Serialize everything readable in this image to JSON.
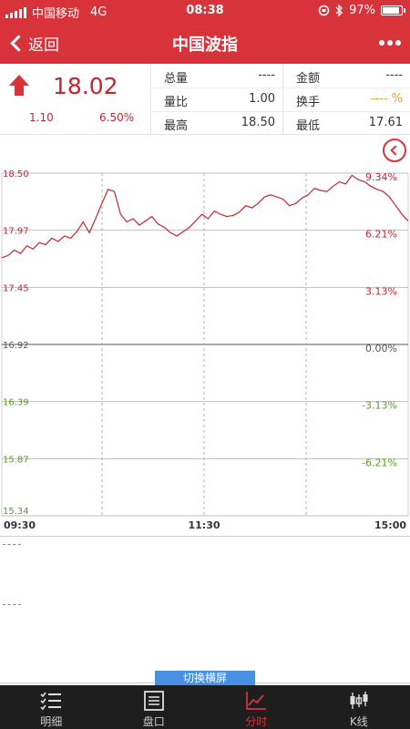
{
  "status_bar": {
    "carrier": "中国移动",
    "network": "4G",
    "time": "08:38",
    "battery": "97%"
  },
  "nav": {
    "back_label": "返回",
    "title": "中国波指"
  },
  "quote": {
    "price": "18.02",
    "change": "1.10",
    "change_pct": "6.50%",
    "fields": [
      {
        "label": "总量",
        "value": "----"
      },
      {
        "label": "金额",
        "value": "----"
      },
      {
        "label": "量比",
        "value": "1.00"
      },
      {
        "label": "换手",
        "value": "---- %"
      },
      {
        "label": "最高",
        "value": "18.50"
      },
      {
        "label": "最低",
        "value": "17.61"
      }
    ]
  },
  "colors": {
    "brand": "#d8333a",
    "up": "#c4262e",
    "down": "#5a9a2e",
    "accent": "#4a90e2",
    "orange": "#f39a2b"
  },
  "chart_data": {
    "type": "line",
    "y_ticks_left": [
      "18.50",
      "17.97",
      "17.45",
      "16.92",
      "16.39",
      "15.87",
      "15.34"
    ],
    "y_ticks_right": [
      "9.34%",
      "6.21%",
      "3.13%",
      "0.00%",
      "-3.13%",
      "-6.21%"
    ],
    "x_ticks": [
      "09:30",
      "11:30",
      "15:00"
    ],
    "ylim": [
      15.34,
      18.5
    ],
    "prev_close": 16.92,
    "series": [
      {
        "values": [
          17.72,
          17.74,
          17.79,
          17.76,
          17.83,
          17.8,
          17.86,
          17.84,
          17.9,
          17.87,
          17.92,
          17.9,
          17.96,
          18.05,
          17.95,
          18.08,
          18.22,
          18.35,
          18.33,
          18.12,
          18.05,
          18.08,
          18.02,
          18.06,
          18.1,
          18.03,
          18.0,
          17.95,
          17.92,
          17.96,
          18.0,
          18.06,
          18.12,
          18.08,
          18.15,
          18.12,
          18.1,
          18.11,
          18.14,
          18.2,
          18.18,
          18.22,
          18.28,
          18.3,
          18.28,
          18.26,
          18.2,
          18.22,
          18.27,
          18.3,
          18.36,
          18.34,
          18.33,
          18.38,
          18.42,
          18.4,
          18.48,
          18.44,
          18.42,
          18.38,
          18.35,
          18.33,
          18.28,
          18.2,
          18.12,
          18.06
        ]
      }
    ]
  },
  "switch_label": "切换横屏",
  "tabs": [
    {
      "label": "明细",
      "icon": "list-check-icon"
    },
    {
      "label": "盘口",
      "icon": "document-icon"
    },
    {
      "label": "分时",
      "icon": "line-chart-icon"
    },
    {
      "label": "K线",
      "icon": "candlestick-icon"
    }
  ]
}
